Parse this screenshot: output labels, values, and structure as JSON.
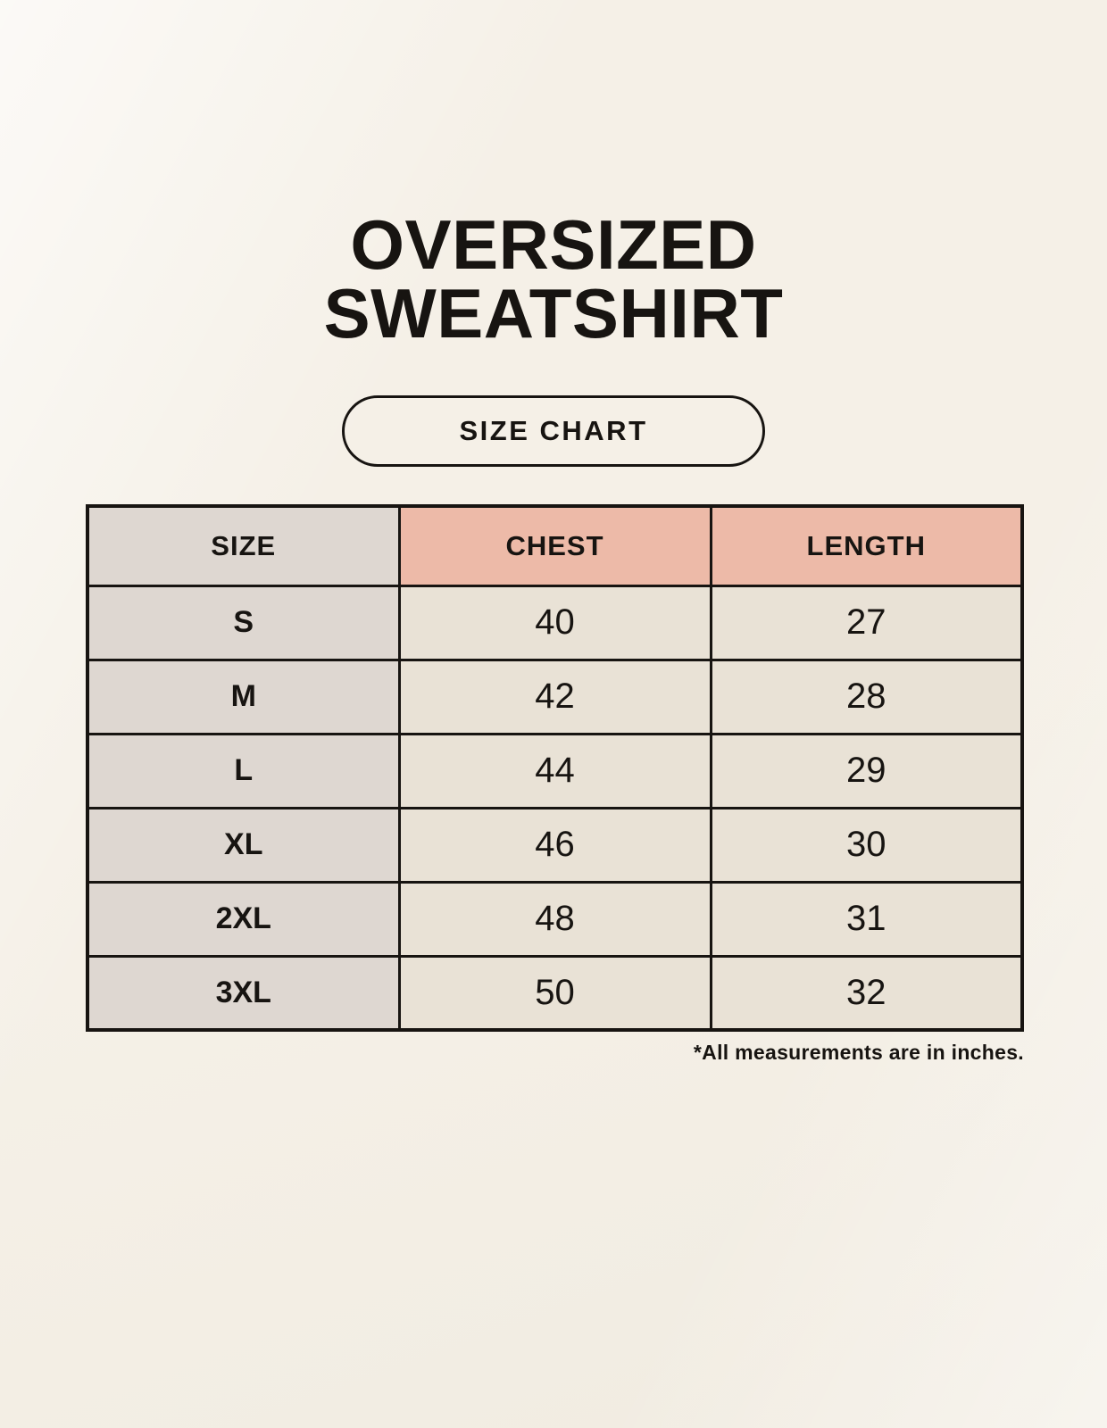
{
  "header": {
    "title_line1": "OVERSIZED",
    "title_line2": "SWEATSHIRT",
    "button_label": "SIZE CHART"
  },
  "chart_data": {
    "type": "table",
    "title": "OVERSIZED SWEATSHIRT SIZE CHART",
    "columns": [
      "SIZE",
      "CHEST",
      "LENGTH"
    ],
    "rows": [
      [
        "S",
        "40",
        "27"
      ],
      [
        "M",
        "42",
        "28"
      ],
      [
        "L",
        "44",
        "29"
      ],
      [
        "XL",
        "46",
        "30"
      ],
      [
        "2XL",
        "48",
        "31"
      ],
      [
        "3XL",
        "50",
        "32"
      ]
    ],
    "units_note": "*All measurements are in inches."
  },
  "colors": {
    "background": "#f8f4ec",
    "size_column_bg": "#ded7d1",
    "accent_header_bg": "#edbaa8",
    "cell_bg": "#e9e2d6",
    "border_and_text": "#171411"
  }
}
